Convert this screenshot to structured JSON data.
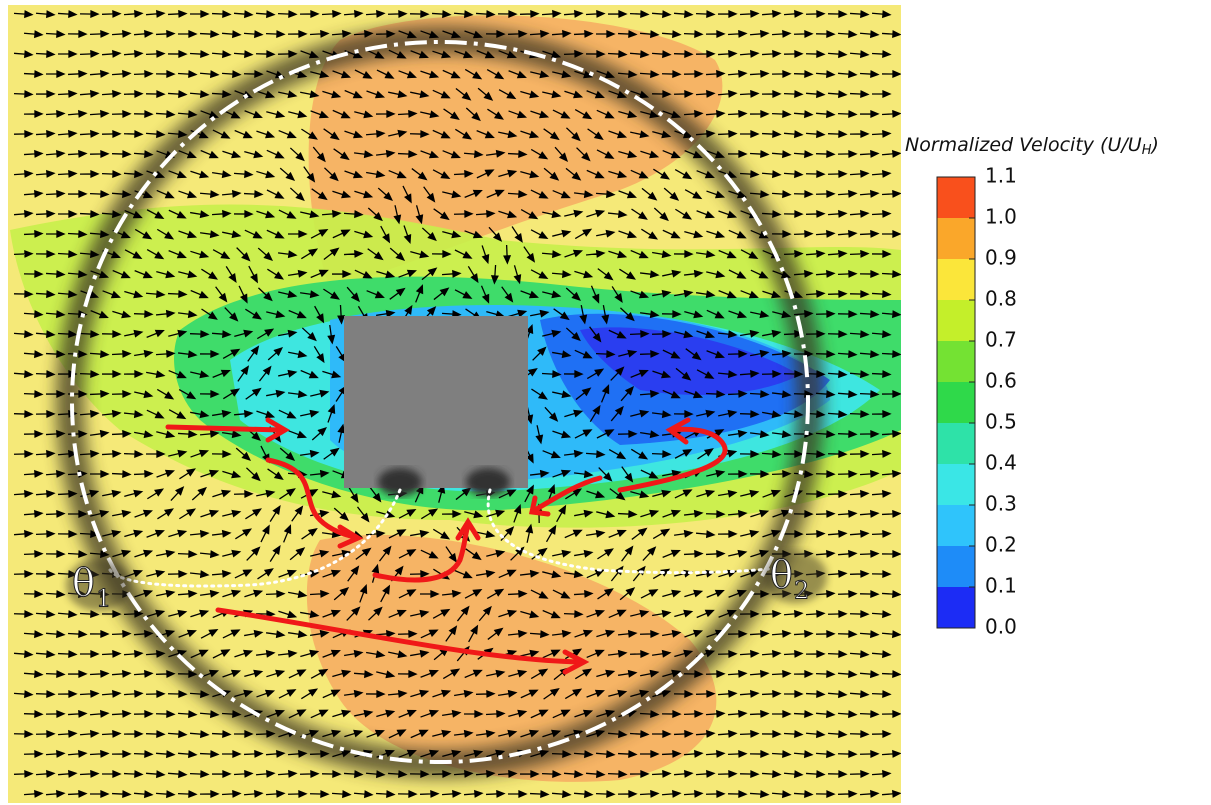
{
  "chart_data": {
    "type": "colorbar",
    "title": "Normalized Velocity (U/U",
    "title_sub": "H",
    "title_end": ")",
    "bins": [
      0,
      0.1,
      0.2,
      0.3,
      0.4,
      0.5,
      0.6,
      0.7,
      0.8,
      0.9,
      1.0,
      1.1
    ],
    "colors": [
      "#1c2cf5",
      "#1e8cf8",
      "#2fc4fb",
      "#3ae6e6",
      "#2ee2a8",
      "#2fd94a",
      "#74e233",
      "#c4ef2a",
      "#fbe63a",
      "#faa72a",
      "#f9501c"
    ],
    "ylim": [
      0,
      1.1
    ],
    "yticks": [
      {
        "value": 0,
        "label": "0.0"
      },
      {
        "value": 0.1,
        "label": "0.1"
      },
      {
        "value": 0.2,
        "label": "0.2"
      },
      {
        "value": 0.3,
        "label": "0.3"
      },
      {
        "value": 0.4,
        "label": "0.4"
      },
      {
        "value": 0.5,
        "label": "0.5"
      },
      {
        "value": 0.6,
        "label": "0.6"
      },
      {
        "value": 0.7,
        "label": "0.7"
      },
      {
        "value": 0.8,
        "label": "0.8"
      },
      {
        "value": 0.9,
        "label": "0.9"
      },
      {
        "value": 1.0,
        "label": "1.0"
      },
      {
        "value": 1.1,
        "label": "1.1"
      }
    ],
    "annotations": [
      {
        "symbol": "θ",
        "sub": "1"
      },
      {
        "symbol": "θ",
        "sub": "2"
      }
    ]
  }
}
